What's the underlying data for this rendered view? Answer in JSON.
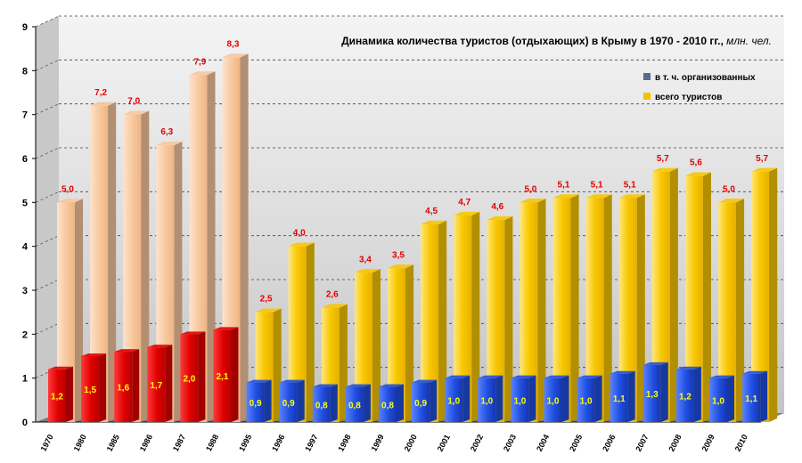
{
  "chart_data": {
    "type": "bar",
    "title": "Динамика количества туристов (отдыхающих) в Крыму в 1970 - 2010 гг.,",
    "unit_label": "млн. чел.",
    "x": [
      "1970",
      "1980",
      "1985",
      "1986",
      "1987",
      "1988",
      "1995",
      "1996",
      "1997",
      "1998",
      "1999",
      "2000",
      "2001",
      "2002",
      "2003",
      "2004",
      "2005",
      "2006",
      "2007",
      "2008",
      "2009",
      "2010"
    ],
    "series": [
      {
        "name": "всего туристов",
        "values": [
          5.0,
          7.2,
          7.0,
          6.3,
          7.9,
          8.3,
          2.5,
          4.0,
          2.6,
          3.4,
          3.5,
          4.5,
          4.7,
          4.6,
          5.0,
          5.1,
          5.1,
          5.1,
          5.7,
          5.6,
          5.0,
          5.7
        ],
        "labels": [
          "5,0",
          "7,2",
          "7,0",
          "6,3",
          "7,9",
          "8,3",
          "2,5",
          "4,0",
          "2,6",
          "3,4",
          "3,5",
          "4,5",
          "4,7",
          "4,6",
          "5,0",
          "5,1",
          "5,1",
          "5,1",
          "5,7",
          "5,6",
          "5,0",
          "5,7"
        ]
      },
      {
        "name": "в т. ч. организованных",
        "values": [
          1.2,
          1.5,
          1.6,
          1.7,
          2.0,
          2.1,
          0.9,
          0.9,
          0.8,
          0.8,
          0.8,
          0.9,
          1.0,
          1.0,
          1.0,
          1.0,
          1.0,
          1.1,
          1.3,
          1.2,
          1.0,
          1.1
        ],
        "labels": [
          "1,2",
          "1,5",
          "1,6",
          "1,7",
          "2,0",
          "2,1",
          "0,9",
          "0,9",
          "0,8",
          "0,8",
          "0,8",
          "0,9",
          "1,0",
          "1,0",
          "1,0",
          "1,0",
          "1,0",
          "1,1",
          "1,3",
          "1,2",
          "1,0",
          "1,1"
        ]
      }
    ],
    "ylim": [
      0,
      9
    ],
    "yticks": [
      0,
      1,
      2,
      3,
      4,
      5,
      6,
      7,
      8,
      9
    ],
    "grid": true,
    "legend_position": "top-right",
    "colors": {
      "total_early": "#f7c79e",
      "total_late": "#f7c600",
      "org_early": "#e00000",
      "org_late": "#1f4fe0",
      "label_total": "#e00000",
      "label_org": "#ffff00",
      "legend_org": "#5a6a90",
      "legend_total": "#f5c000"
    }
  }
}
